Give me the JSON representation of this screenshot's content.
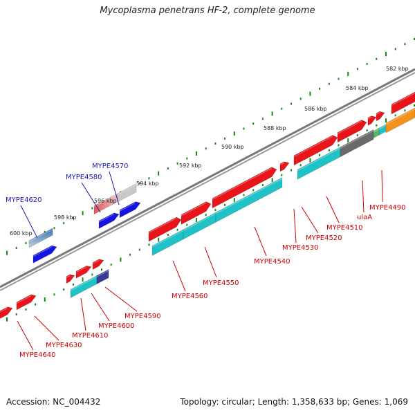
{
  "title": "Mycoplasma penetrans HF-2, complete genome",
  "footer": {
    "accession": "Accession: NC_004432",
    "summary": "Topology: circular; Length: 1,358,633 bp; Genes: 1,069"
  },
  "colors": {
    "forward_gene": "#e8151a",
    "reverse_gene": "#1fc3c7",
    "selected_gene": "#1414e0",
    "pseudo_gene": "#c8c8c8",
    "backbone": "#777777",
    "tick_dot": "#118811",
    "gene_label": "#cc0000",
    "selected_label": "#1a1ab0"
  },
  "ruler_ticks": [
    "582 kbp",
    "584 kbp",
    "586 kbp",
    "588 kbp",
    "590 kbp",
    "592 kbp",
    "594 kbp",
    "596 kbp",
    "598 kbp",
    "600 kbp"
  ],
  "genes_top": [
    {
      "label": "MYPE4570",
      "status": "selected"
    },
    {
      "label": "MYPE4580",
      "status": "selected"
    },
    {
      "label": "MYPE4620",
      "status": "selected"
    }
  ],
  "genes_bottom": [
    {
      "label": "MYPE4490"
    },
    {
      "label": "ulaA"
    },
    {
      "label": "MYPE4510"
    },
    {
      "label": "MYPE4520"
    },
    {
      "label": "MYPE4530"
    },
    {
      "label": "MYPE4540"
    },
    {
      "label": "MYPE4550"
    },
    {
      "label": "MYPE4560"
    },
    {
      "label": "MYPE4590"
    },
    {
      "label": "MYPE4600"
    },
    {
      "label": "MYPE4610"
    },
    {
      "label": "MYPE4630"
    },
    {
      "label": "MYPE4640"
    }
  ]
}
